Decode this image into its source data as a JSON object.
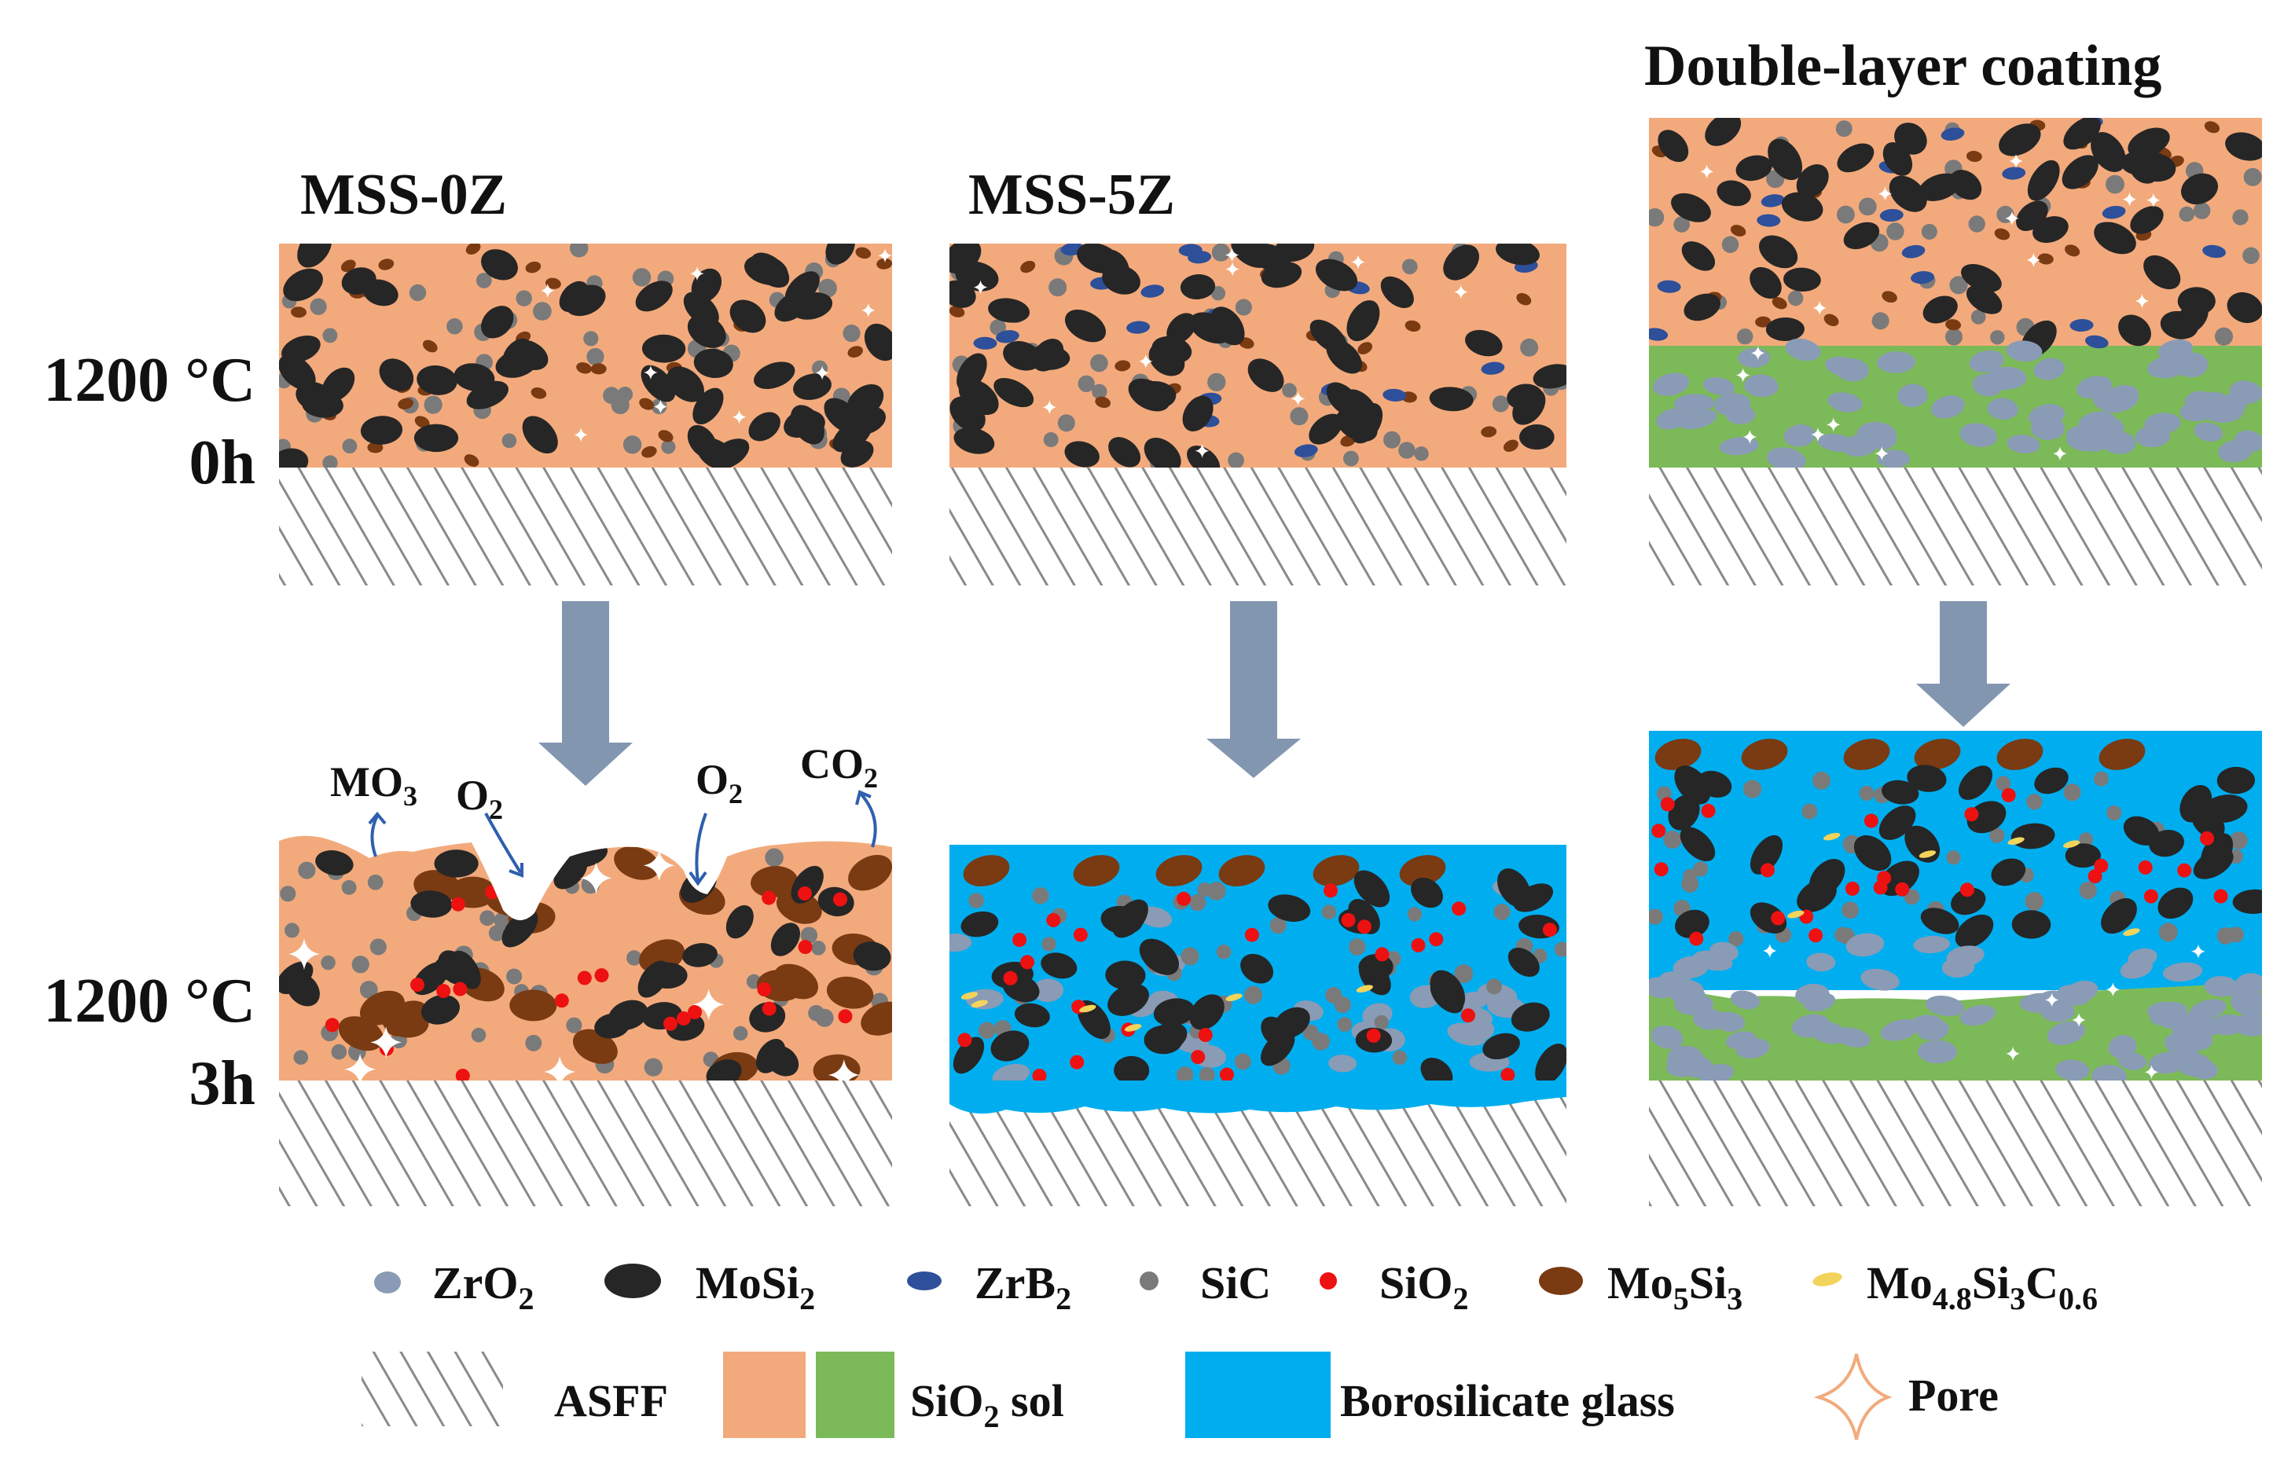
{
  "columns": [
    {
      "title": "MSS-0Z"
    },
    {
      "title": "MSS-5Z"
    },
    {
      "title": "Double-layer coating"
    }
  ],
  "rows": [
    {
      "temperature": "1200 °C",
      "time": "0h"
    },
    {
      "temperature": "1200 °C",
      "time": "3h"
    }
  ],
  "reaction_labels": {
    "mo_oxide_main": "MO",
    "mo_oxide_sub": "3",
    "o2_main": "O",
    "o2_sub": "2",
    "co2_main": "CO",
    "co2_sub": "2"
  },
  "legend": {
    "zro2": {
      "main": "ZrO",
      "sub": "2"
    },
    "mosi2": {
      "main": "MoSi",
      "sub": "2"
    },
    "zrb2": {
      "main": "ZrB",
      "sub": "2"
    },
    "sic": {
      "main": "SiC"
    },
    "sio2": {
      "main": "SiO",
      "sub": "2"
    },
    "mo5si3": {
      "p1": "Mo",
      "s1": "5",
      "p2": "Si",
      "s2": "3"
    },
    "mo48si3c06": {
      "p1": "Mo",
      "s1": "4.8",
      "p2": "Si",
      "s2": "3",
      "p3": "C",
      "s3": "0.6"
    },
    "asff": "ASFF",
    "sio2_sol": {
      "main": "SiO",
      "sub": "2",
      "rest": " sol"
    },
    "borosilicate": "Borosilicate glass",
    "pore": "Pore"
  },
  "colors": {
    "asff_layer": "#f2aa7c",
    "sio2_sol": "#7cba59",
    "borosilicate": "#00aeef",
    "arrow": "#8396b0",
    "zro2": "#8a9bb5",
    "mosi2": "#262626",
    "zrb2": "#2e4f9a",
    "sic": "#7a7a7a",
    "sio2": "#ee1111",
    "mo5si3": "#7a3a12",
    "mo48si3c06": "#f2d45c",
    "hatch": "#8a8a8a",
    "pore": "#ffffff"
  }
}
